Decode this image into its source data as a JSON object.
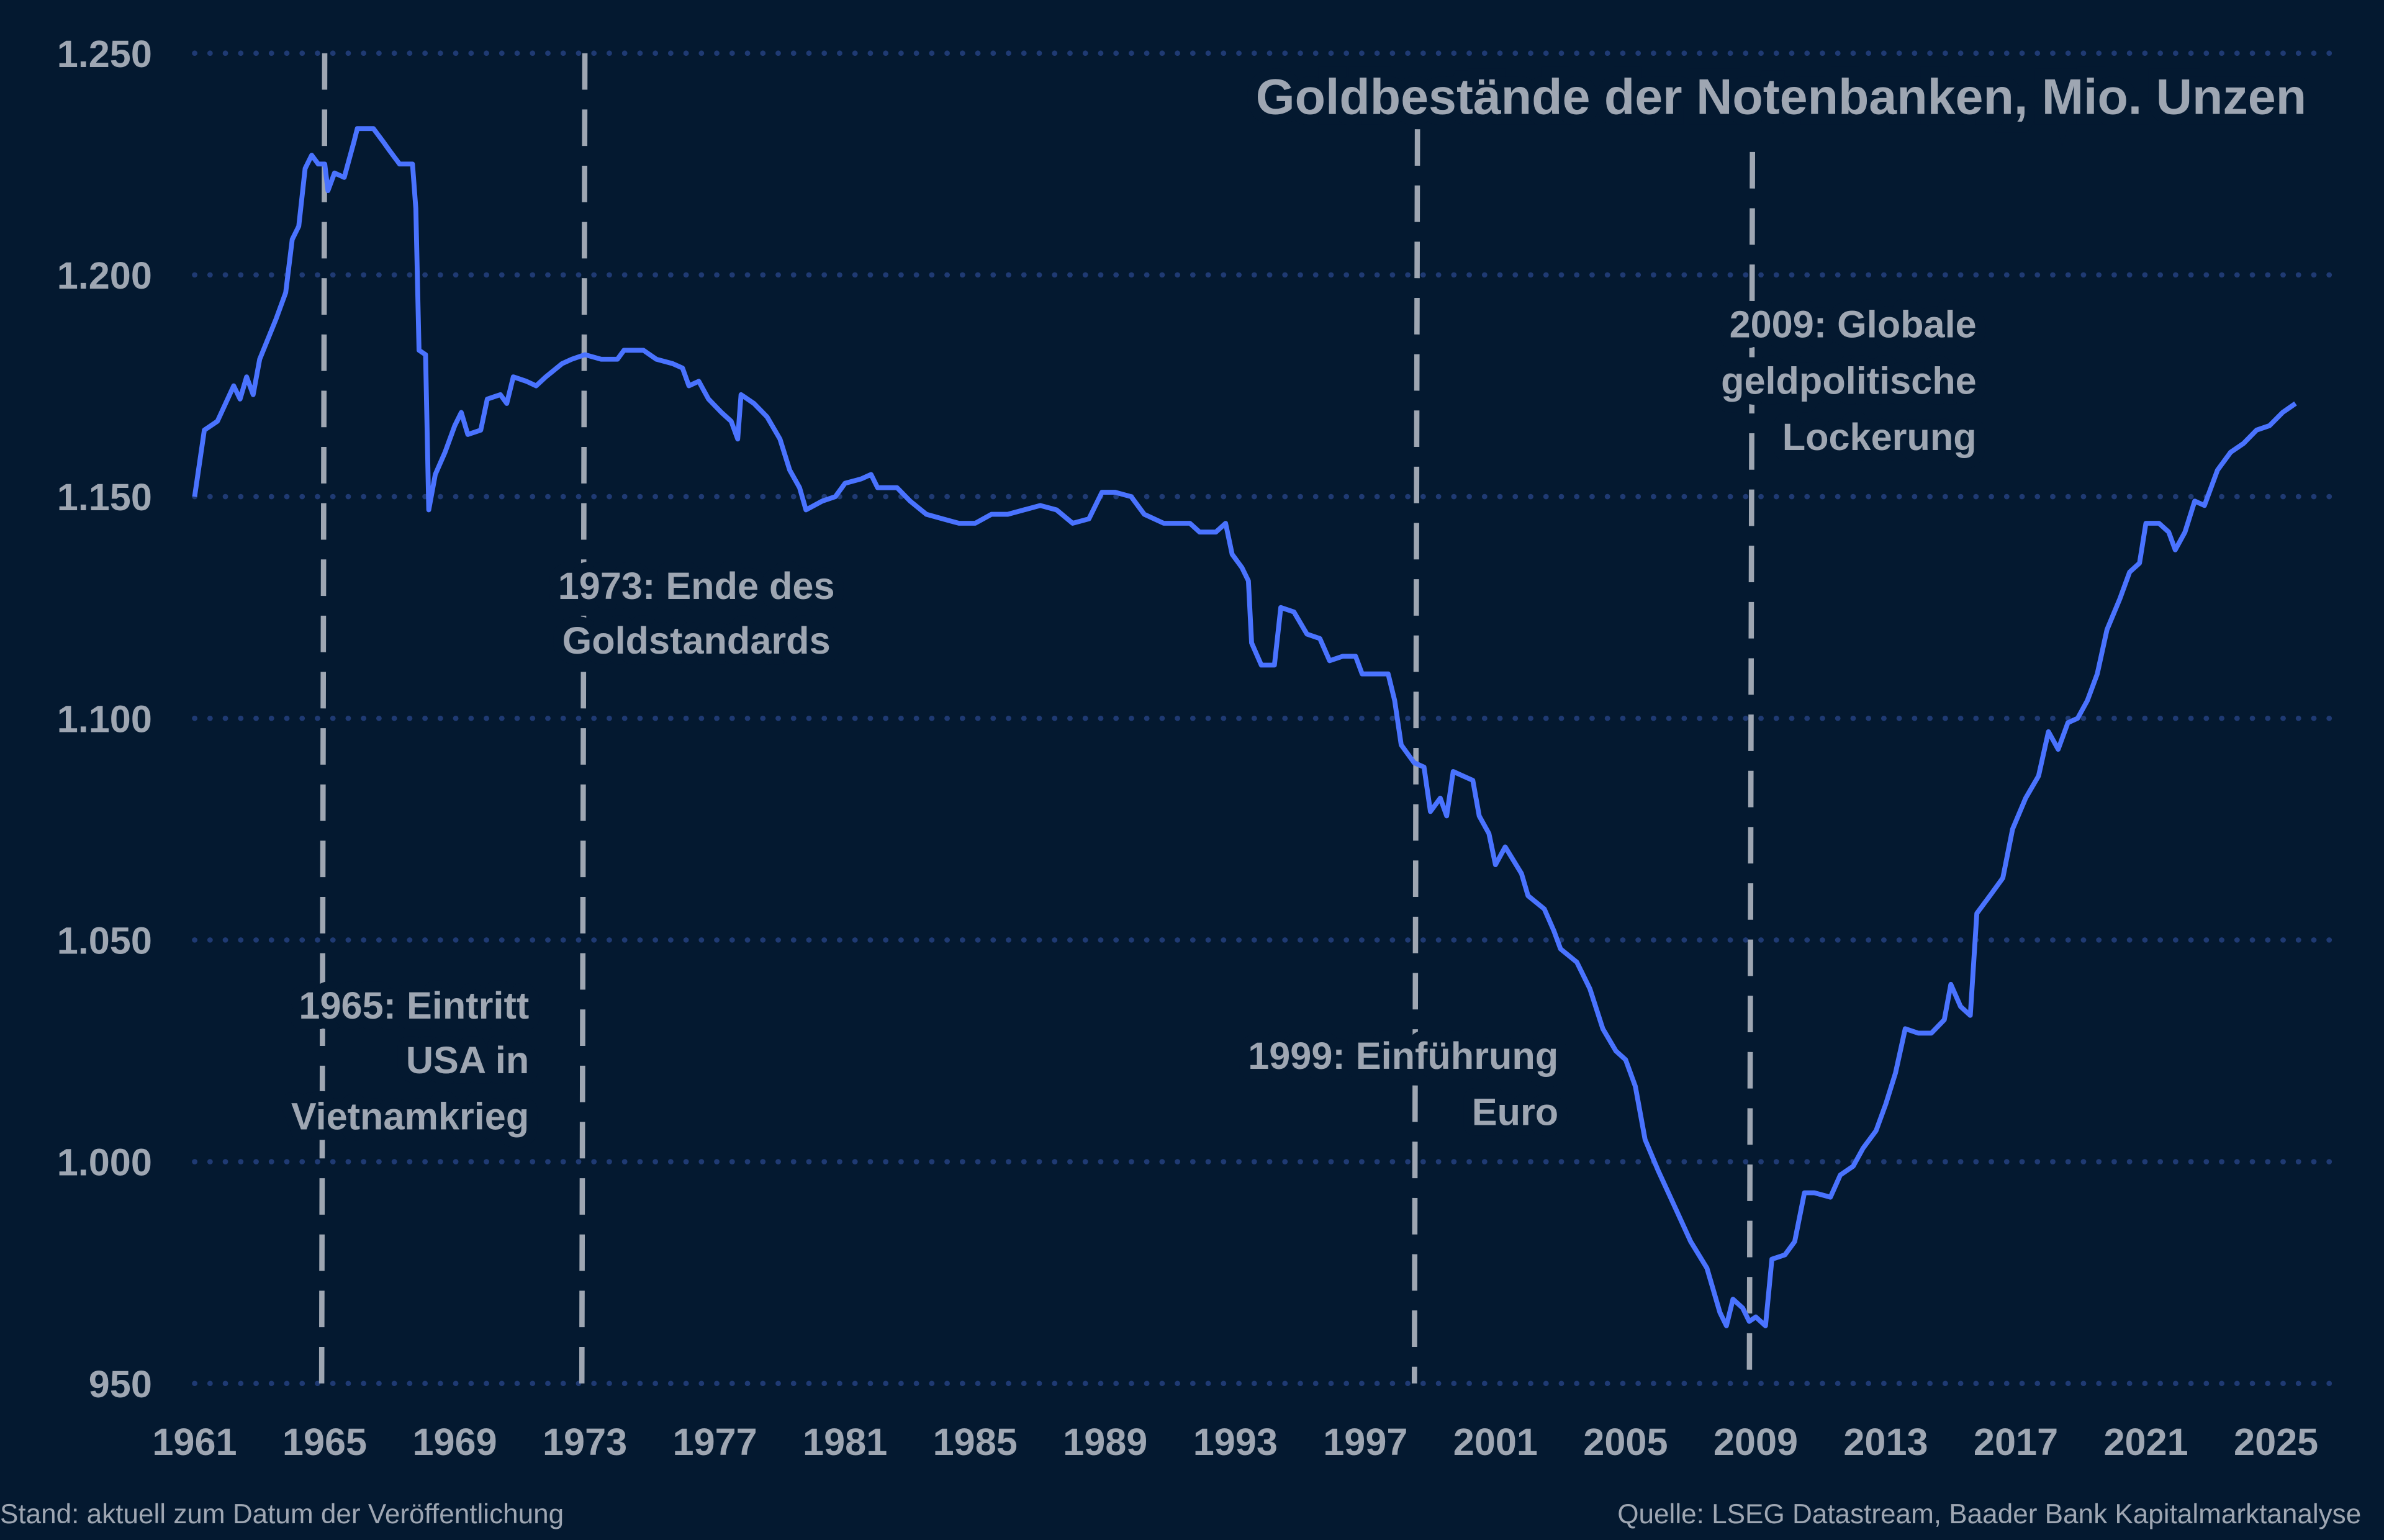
{
  "chart_data": {
    "type": "line",
    "title": "Goldbestände der Notenbanken, Mio. Unzen",
    "xlabel": "",
    "ylabel": "",
    "xlim": [
      1961,
      2025.6
    ],
    "ylim": [
      950,
      1250
    ],
    "y_ticks": [
      "950",
      "1.000",
      "1.050",
      "1.100",
      "1.150",
      "1.200",
      "1.250"
    ],
    "y_tick_values": [
      950,
      1000,
      1050,
      1100,
      1150,
      1200,
      1250
    ],
    "x_ticks": [
      "1961",
      "1965",
      "1969",
      "1973",
      "1977",
      "1981",
      "1985",
      "1989",
      "1993",
      "1997",
      "2001",
      "2005",
      "2009",
      "2013",
      "2017",
      "2021",
      "2025"
    ],
    "grid": "horizontal dotted",
    "colors": {
      "background": "#041930",
      "line": "#4a73ff",
      "grid": "#1f3a73",
      "text": "#9ea6b2",
      "event_line": "#9ea6b2"
    },
    "series": [
      {
        "x": [
          1961.0,
          1961.3,
          1961.7,
          1962.2,
          1962.4,
          1962.6,
          1962.8,
          1963.0,
          1963.5,
          1963.8,
          1964.0,
          1964.2,
          1964.4,
          1964.6,
          1964.8,
          1965.0,
          1965.1,
          1965.3,
          1965.6,
          1965.9,
          1966.0,
          1966.5,
          1966.8,
          1967.0,
          1967.3,
          1967.7,
          1967.8,
          1967.9,
          1968.1,
          1968.2,
          1968.4,
          1968.7,
          1969.0,
          1969.2,
          1969.4,
          1969.8,
          1970.0,
          1970.4,
          1970.6,
          1970.8,
          1971.2,
          1971.5,
          1971.8,
          1972.3,
          1972.6,
          1973.0,
          1973.5,
          1974.0,
          1974.2,
          1974.8,
          1975.2,
          1975.7,
          1976.0,
          1976.2,
          1976.5,
          1976.8,
          1977.2,
          1977.5,
          1977.7,
          1977.8,
          1978.2,
          1978.6,
          1979.0,
          1979.3,
          1979.6,
          1979.8,
          1980.3,
          1980.7,
          1981.0,
          1981.5,
          1981.8,
          1982.0,
          1982.6,
          1983.0,
          1983.5,
          1984.0,
          1984.5,
          1985.0,
          1985.5,
          1986.0,
          1986.5,
          1987.0,
          1987.5,
          1988.0,
          1988.5,
          1988.9,
          1989.3,
          1989.8,
          1990.2,
          1990.8,
          1991.2,
          1991.6,
          1991.9,
          1992.4,
          1992.7,
          1992.9,
          1993.2,
          1993.4,
          1993.5,
          1993.8,
          1994.2,
          1994.4,
          1994.8,
          1995.2,
          1995.6,
          1995.9,
          1996.3,
          1996.7,
          1996.9,
          1997.3,
          1997.7,
          1997.9,
          1998.1,
          1998.5,
          1998.8,
          1999.0,
          1999.3,
          1999.5,
          1999.7,
          2000.0,
          2000.3,
          2000.5,
          2000.8,
          2001.0,
          2001.3,
          2001.8,
          2002.0,
          2002.5,
          2002.8,
          2003.0,
          2003.5,
          2003.9,
          2004.3,
          2004.7,
          2005.0,
          2005.3,
          2005.6,
          2006.0,
          2006.5,
          2007.0,
          2007.5,
          2007.9,
          2008.1,
          2008.3,
          2008.6,
          2008.8,
          2009.0,
          2009.3,
          2009.5,
          2009.9,
          2010.2,
          2010.5,
          2010.8,
          2011.3,
          2011.6,
          2012.0,
          2012.3,
          2012.7,
          2013.0,
          2013.3,
          2013.6,
          2014.0,
          2014.4,
          2014.8,
          2015.0,
          2015.3,
          2015.6,
          2015.8,
          2016.2,
          2016.6,
          2016.9,
          2017.3,
          2017.7,
          2018.0,
          2018.3,
          2018.6,
          2018.9,
          2019.2,
          2019.5,
          2019.8,
          2020.2,
          2020.5,
          2020.8,
          2021.0,
          2021.4,
          2021.7,
          2021.9,
          2022.2,
          2022.5,
          2022.8,
          2023.2,
          2023.6,
          2024.0,
          2024.4,
          2024.8,
          2025.2,
          2025.6
        ],
        "y": [
          1150,
          1165,
          1167,
          1175,
          1172,
          1177,
          1173,
          1181,
          1190,
          1196,
          1208,
          1211,
          1224,
          1227,
          1225,
          1225,
          1219,
          1223,
          1222,
          1230,
          1233,
          1233,
          1230,
          1228,
          1225,
          1225,
          1215,
          1183,
          1182,
          1147,
          1155,
          1160,
          1166,
          1169,
          1164,
          1165,
          1172,
          1173,
          1171,
          1177,
          1176,
          1175,
          1177,
          1180,
          1181,
          1182,
          1181,
          1181,
          1183,
          1183,
          1181,
          1180,
          1179,
          1175,
          1176,
          1172,
          1169,
          1167,
          1163,
          1173,
          1171,
          1168,
          1163,
          1156,
          1152,
          1147,
          1149,
          1150,
          1153,
          1154,
          1155,
          1152,
          1152,
          1149,
          1146,
          1145,
          1144,
          1144,
          1146,
          1146,
          1147,
          1148,
          1147,
          1144,
          1145,
          1151,
          1151,
          1150,
          1146,
          1144,
          1144,
          1144,
          1142,
          1142,
          1144,
          1137,
          1134,
          1131,
          1117,
          1112,
          1112,
          1125,
          1124,
          1119,
          1118,
          1113,
          1114,
          1114,
          1110,
          1110,
          1110,
          1104,
          1094,
          1090,
          1089,
          1079,
          1082,
          1078,
          1088,
          1087,
          1086,
          1078,
          1074,
          1067,
          1071,
          1065,
          1060,
          1057,
          1052,
          1048,
          1045,
          1039,
          1030,
          1025,
          1023,
          1017,
          1005,
          998,
          990,
          982,
          976,
          966,
          963,
          969,
          967,
          964,
          965,
          963,
          978,
          979,
          982,
          993,
          993,
          992,
          997,
          999,
          1003,
          1007,
          1013,
          1020,
          1030,
          1029,
          1029,
          1032,
          1040,
          1035,
          1033,
          1056,
          1060,
          1064,
          1075,
          1082,
          1087,
          1097,
          1093,
          1099,
          1100,
          1104,
          1110,
          1120,
          1127,
          1133,
          1135,
          1144,
          1144,
          1142,
          1138,
          1142,
          1149,
          1148,
          1156,
          1160,
          1162,
          1165,
          1166,
          1169,
          1171
        ]
      }
    ],
    "events": [
      {
        "x": 1965.0,
        "lines": [
          "1965: Eintritt",
          "USA in",
          "Vietnamkrieg"
        ]
      },
      {
        "x": 1973.0,
        "lines": [
          "1973: Ende des",
          "Goldstandards"
        ]
      },
      {
        "x": 1998.6,
        "lines": [
          "1999: Einführung",
          "Euro"
        ]
      },
      {
        "x": 2008.9,
        "lines": [
          "2009: Globale",
          "geldpolitische",
          "Lockerung"
        ]
      }
    ]
  },
  "footer": {
    "left": "Stand: aktuell zum Datum der Veröffentlichung",
    "right": "Quelle: LSEG Datastream, Baader Bank Kapitalmarktanalyse"
  }
}
